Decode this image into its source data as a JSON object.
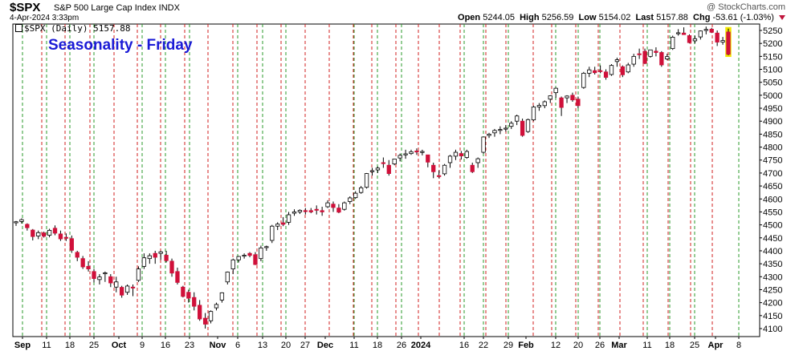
{
  "header": {
    "symbol": "$SPX",
    "name": "S&P 500 Large Cap Index INDX",
    "datetime": "4-Apr-2024 3:33pm",
    "watermark": "@ StockCharts.com",
    "open_label": "Open",
    "open": "5244.05",
    "high_label": "High",
    "high": "5256.59",
    "low_label": "Low",
    "low": "5154.02",
    "last_label": "Last",
    "last": "5157.88",
    "chg_label": "Chg",
    "chg": "-53.61 (-1.03%)",
    "legend": "$SPX (Daily) 5157.88"
  },
  "colors": {
    "up": "#ffffff",
    "down": "#d0103a",
    "wick": "#000000",
    "title": "#1b1bd6",
    "monday_line": "#2a9a2a",
    "friday_line": "#d01f1f",
    "highlight": "#f2e600"
  },
  "chart_data": {
    "type": "candlestick",
    "title": "Seasonality - Friday",
    "y_ticks": [
      4100,
      4150,
      4200,
      4250,
      4300,
      4350,
      4400,
      4450,
      4500,
      4550,
      4600,
      4650,
      4700,
      4750,
      4800,
      4850,
      4900,
      4950,
      5000,
      5050,
      5100,
      5150,
      5200,
      5250
    ],
    "ylim": [
      4080,
      5280
    ],
    "x_labels": [
      "Sep",
      "11",
      "18",
      "25",
      "Oct",
      "9",
      "16",
      "23",
      "Nov",
      "6",
      "13",
      "20",
      "27",
      "Dec",
      "11",
      "18",
      "26",
      "2024",
      "16",
      "22",
      "29",
      "Feb",
      "12",
      "20",
      "26",
      "Mar",
      "11",
      "18",
      "25",
      "Apr",
      "8"
    ],
    "x_label_bold": [
      "Sep",
      "Oct",
      "Nov",
      "Dec",
      "2024",
      "Feb",
      "Mar",
      "Apr"
    ],
    "grid": "vertical dashed: green on Mondays, red on Fridays",
    "series": [
      {
        "values": [
          [
            4508,
            4515,
            4496,
            4512
          ],
          [
            4513,
            4525,
            4505,
            4520
          ],
          [
            4502,
            4506,
            4478,
            4489
          ],
          [
            4480,
            4484,
            4440,
            4455
          ],
          [
            4457,
            4478,
            4445,
            4470
          ],
          [
            4469,
            4474,
            4451,
            4456
          ],
          [
            4460,
            4485,
            4452,
            4479
          ],
          [
            4487,
            4498,
            4460,
            4468
          ],
          [
            4465,
            4478,
            4438,
            4446
          ],
          [
            4452,
            4467,
            4438,
            4450
          ],
          [
            4447,
            4459,
            4392,
            4402
          ],
          [
            4394,
            4400,
            4360,
            4375
          ],
          [
            4370,
            4380,
            4330,
            4338
          ],
          [
            4340,
            4360,
            4320,
            4330
          ],
          [
            4320,
            4330,
            4278,
            4293
          ],
          [
            4289,
            4310,
            4270,
            4299
          ],
          [
            4312,
            4320,
            4280,
            4315
          ],
          [
            4300,
            4310,
            4260,
            4276
          ],
          [
            4260,
            4300,
            4240,
            4280
          ],
          [
            4259,
            4265,
            4219,
            4229
          ],
          [
            4240,
            4270,
            4230,
            4264
          ],
          [
            4260,
            4270,
            4225,
            4258
          ],
          [
            4286,
            4340,
            4280,
            4330
          ],
          [
            4340,
            4390,
            4330,
            4373
          ],
          [
            4370,
            4390,
            4350,
            4381
          ],
          [
            4390,
            4400,
            4350,
            4375
          ],
          [
            4390,
            4400,
            4365,
            4396
          ],
          [
            4383,
            4400,
            4355,
            4362
          ],
          [
            4360,
            4370,
            4300,
            4314
          ],
          [
            4320,
            4335,
            4270,
            4278
          ],
          [
            4260,
            4265,
            4220,
            4224
          ],
          [
            4240,
            4250,
            4200,
            4217
          ],
          [
            4220,
            4240,
            4170,
            4186
          ],
          [
            4190,
            4210,
            4130,
            4137
          ],
          [
            4140,
            4160,
            4100,
            4117
          ],
          [
            4130,
            4170,
            4120,
            4166
          ],
          [
            4180,
            4200,
            4170,
            4193
          ],
          [
            4210,
            4240,
            4200,
            4238
          ],
          [
            4280,
            4320,
            4270,
            4318
          ],
          [
            4330,
            4370,
            4310,
            4365
          ],
          [
            4365,
            4380,
            4355,
            4378
          ],
          [
            4380,
            4390,
            4370,
            4383
          ],
          [
            4390,
            4395,
            4375,
            4382
          ],
          [
            4385,
            4395,
            4345,
            4347
          ],
          [
            4370,
            4420,
            4360,
            4411
          ],
          [
            4415,
            4420,
            4400,
            4416
          ],
          [
            4440,
            4500,
            4430,
            4495
          ],
          [
            4495,
            4510,
            4480,
            4503
          ],
          [
            4508,
            4530,
            4495,
            4502
          ],
          [
            4510,
            4550,
            4500,
            4539
          ],
          [
            4545,
            4560,
            4535,
            4550
          ],
          [
            4550,
            4560,
            4542,
            4556
          ],
          [
            4555,
            4565,
            4540,
            4554
          ],
          [
            4555,
            4565,
            4545,
            4550
          ],
          [
            4560,
            4575,
            4540,
            4559
          ],
          [
            4555,
            4570,
            4535,
            4550
          ],
          [
            4570,
            4595,
            4565,
            4585
          ],
          [
            4580,
            4590,
            4550,
            4567
          ],
          [
            4565,
            4580,
            4545,
            4549
          ],
          [
            4560,
            4590,
            4555,
            4585
          ],
          [
            4590,
            4610,
            4580,
            4604
          ],
          [
            4605,
            4630,
            4600,
            4622
          ],
          [
            4625,
            4650,
            4620,
            4643
          ],
          [
            4645,
            4700,
            4640,
            4698
          ],
          [
            4705,
            4720,
            4690,
            4709
          ],
          [
            4712,
            4725,
            4700,
            4719
          ],
          [
            4740,
            4760,
            4720,
            4739
          ],
          [
            4730,
            4750,
            4690,
            4698
          ],
          [
            4735,
            4755,
            4730,
            4754
          ],
          [
            4758,
            4775,
            4745,
            4768
          ],
          [
            4770,
            4790,
            4755,
            4774
          ],
          [
            4775,
            4790,
            4770,
            4782
          ],
          [
            4785,
            4795,
            4770,
            4781
          ],
          [
            4780,
            4790,
            4768,
            4783
          ],
          [
            4770,
            4770,
            4722,
            4742
          ],
          [
            4730,
            4740,
            4680,
            4705
          ],
          [
            4690,
            4710,
            4680,
            4689
          ],
          [
            4697,
            4735,
            4690,
            4730
          ],
          [
            4740,
            4770,
            4720,
            4765
          ],
          [
            4765,
            4790,
            4750,
            4780
          ],
          [
            4775,
            4785,
            4752,
            4766
          ],
          [
            4760,
            4790,
            4755,
            4783
          ],
          [
            4730,
            4740,
            4700,
            4705
          ],
          [
            4740,
            4760,
            4720,
            4755
          ],
          [
            4780,
            4840,
            4775,
            4839
          ],
          [
            4845,
            4855,
            4835,
            4850
          ],
          [
            4855,
            4870,
            4840,
            4864
          ],
          [
            4868,
            4880,
            4850,
            4868
          ],
          [
            4870,
            4885,
            4860,
            4873
          ],
          [
            4880,
            4900,
            4870,
            4892
          ],
          [
            4900,
            4925,
            4885,
            4920
          ],
          [
            4900,
            4910,
            4840,
            4845
          ],
          [
            4860,
            4910,
            4855,
            4906
          ],
          [
            4905,
            4960,
            4900,
            4955
          ],
          [
            4955,
            4970,
            4940,
            4961
          ],
          [
            4960,
            4980,
            4950,
            4975
          ],
          [
            4985,
            5000,
            4970,
            4998
          ],
          [
            5010,
            5030,
            4990,
            5027
          ],
          [
            4990,
            4995,
            4920,
            4953
          ],
          [
            4990,
            5000,
            4970,
            4997
          ],
          [
            5000,
            5010,
            4975,
            4982
          ],
          [
            4985,
            4995,
            4950,
            4960
          ],
          [
            5030,
            5090,
            5025,
            5085
          ],
          [
            5085,
            5110,
            5070,
            5098
          ],
          [
            5095,
            5110,
            5080,
            5087
          ],
          [
            5095,
            5115,
            5085,
            5093
          ],
          [
            5090,
            5100,
            5060,
            5069
          ],
          [
            5080,
            5120,
            5075,
            5115
          ],
          [
            5130,
            5145,
            5110,
            5137
          ],
          [
            5110,
            5115,
            5070,
            5079
          ],
          [
            5090,
            5125,
            5085,
            5117
          ],
          [
            5120,
            5160,
            5110,
            5150
          ],
          [
            5160,
            5180,
            5140,
            5157
          ],
          [
            5170,
            5180,
            5120,
            5123
          ],
          [
            5150,
            5175,
            5145,
            5175
          ],
          [
            5170,
            5185,
            5150,
            5165
          ],
          [
            5165,
            5170,
            5110,
            5117
          ],
          [
            5140,
            5160,
            5135,
            5149
          ],
          [
            5180,
            5230,
            5175,
            5224
          ],
          [
            5240,
            5255,
            5230,
            5241
          ],
          [
            5240,
            5262,
            5235,
            5234
          ],
          [
            5230,
            5235,
            5200,
            5203
          ],
          [
            5210,
            5230,
            5200,
            5218
          ],
          [
            5225,
            5250,
            5215,
            5248
          ],
          [
            5250,
            5265,
            5235,
            5254
          ],
          [
            5255,
            5260,
            5240,
            5243
          ],
          [
            5240,
            5250,
            5190,
            5205
          ],
          [
            5205,
            5225,
            5195,
            5211
          ],
          [
            5244,
            5257,
            5154,
            5158
          ]
        ]
      }
    ]
  }
}
